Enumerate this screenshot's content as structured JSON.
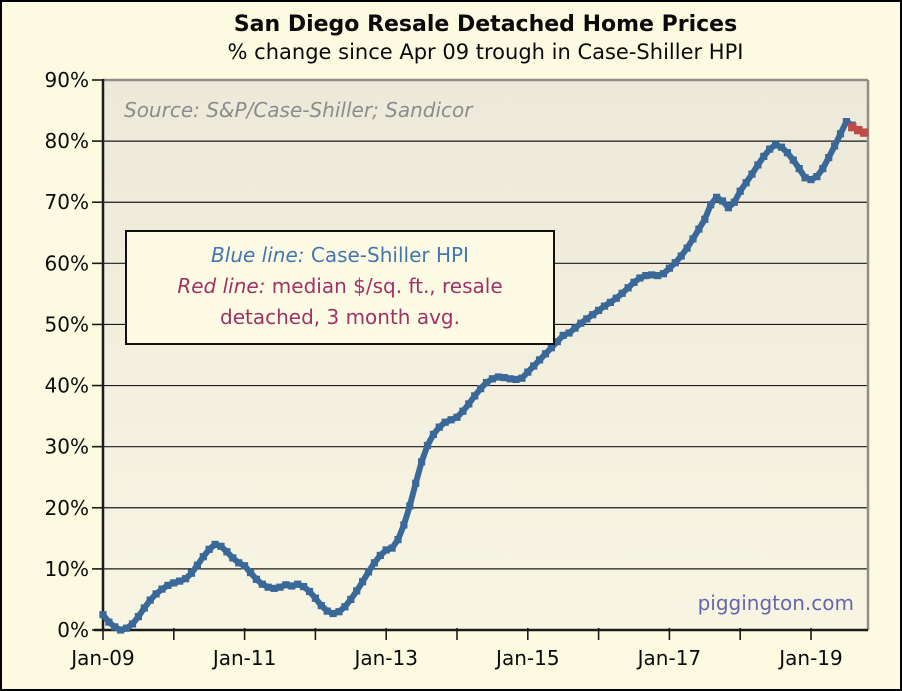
{
  "title": "San Diego Resale Detached Home Prices",
  "subtitle": "% change since Apr 09 trough in Case-Shiller HPI",
  "source_note": "Source: S&P/Case-Shiller; Sandicor",
  "watermark": "piggington.com",
  "legend": {
    "blue_prefix": "Blue line:",
    "blue_label": "Case-Shiller HPI",
    "red_prefix": "Red line:",
    "red_label": "median $/sq. ft., resale detached, 3 month avg."
  },
  "colors": {
    "page_background": "#FCFBE1",
    "plot_background_top": "#EDE9DA",
    "plot_background_bottom": "#F8F5E3",
    "blue_line": "#3A6898",
    "red_line": "#BE4B45",
    "legend_blue_text": "#4377AF",
    "legend_red_text": "#9E3365",
    "gridline": "#1b1b1b",
    "plot_border_gray": "#8F8F85",
    "watermark_text": "#6767AB",
    "source_text": "#8C8C8C"
  },
  "chart_data": {
    "type": "line",
    "title": "San Diego Resale Detached Home Prices",
    "subtitle": "% change since Apr 09 trough in Case-Shiller HPI",
    "xlabel": "",
    "ylabel": "% change since Apr 2009 trough",
    "x_unit": "months since Jan-2009, monthly frequency",
    "ylim": [
      0,
      90
    ],
    "y_ticks": [
      0,
      10,
      20,
      30,
      40,
      50,
      60,
      70,
      80,
      90
    ],
    "y_tick_suffix": "%",
    "grid": "horizontal",
    "x_tick_months": [
      0,
      24,
      48,
      72,
      96,
      120
    ],
    "x_tick_labels": [
      "Jan-09",
      "Jan-11",
      "Jan-13",
      "Jan-15",
      "Jan-17",
      "Jan-19"
    ],
    "x_all_tick_months": [
      0,
      12,
      24,
      36,
      48,
      60,
      72,
      84,
      96,
      108,
      120
    ],
    "series": [
      {
        "name": "Case-Shiller HPI",
        "color": "#3A6898",
        "marker": "square",
        "start_month": 0,
        "values": [
          2.5,
          1.3,
          0.5,
          0.0,
          0.3,
          1.0,
          2.2,
          3.6,
          4.9,
          5.9,
          6.7,
          7.3,
          7.7,
          8.0,
          8.4,
          9.3,
          10.6,
          12.0,
          13.2,
          14.0,
          13.7,
          12.8,
          11.8,
          11.0,
          10.5,
          9.4,
          8.3,
          7.5,
          7.0,
          6.8,
          7.0,
          7.4,
          7.2,
          7.5,
          7.1,
          6.3,
          5.2,
          4.0,
          3.1,
          2.7,
          3.0,
          3.8,
          5.0,
          6.4,
          7.9,
          9.5,
          11.0,
          12.2,
          13.1,
          13.4,
          14.8,
          17.2,
          20.3,
          24.0,
          27.5,
          30.2,
          32.0,
          33.2,
          34.0,
          34.4,
          34.8,
          35.8,
          37.0,
          38.3,
          39.5,
          40.5,
          41.1,
          41.4,
          41.3,
          41.1,
          41.0,
          41.2,
          42.2,
          43.2,
          44.2,
          45.2,
          46.2,
          47.2,
          48.2,
          48.6,
          49.4,
          50.2,
          50.9,
          51.6,
          52.3,
          53.0,
          53.6,
          54.3,
          55.1,
          56.0,
          56.9,
          57.6,
          58.0,
          58.1,
          58.0,
          58.3,
          59.2,
          60.1,
          61.2,
          62.5,
          64.0,
          65.6,
          67.2,
          69.6,
          70.8,
          70.2,
          69.1,
          70.0,
          71.8,
          73.2,
          74.6,
          76.1,
          77.5,
          78.7,
          79.4,
          79.0,
          78.1,
          76.9,
          75.5,
          74.0,
          73.7,
          74.2,
          75.5,
          77.3,
          79.2,
          81.2,
          83.2,
          82.6
        ]
      },
      {
        "name": "median $/sq. ft., resale detached, 3 month avg.",
        "color": "#BE4B45",
        "marker": "square",
        "start_month": 127,
        "values": [
          82.3,
          81.8,
          81.4
        ]
      }
    ]
  }
}
